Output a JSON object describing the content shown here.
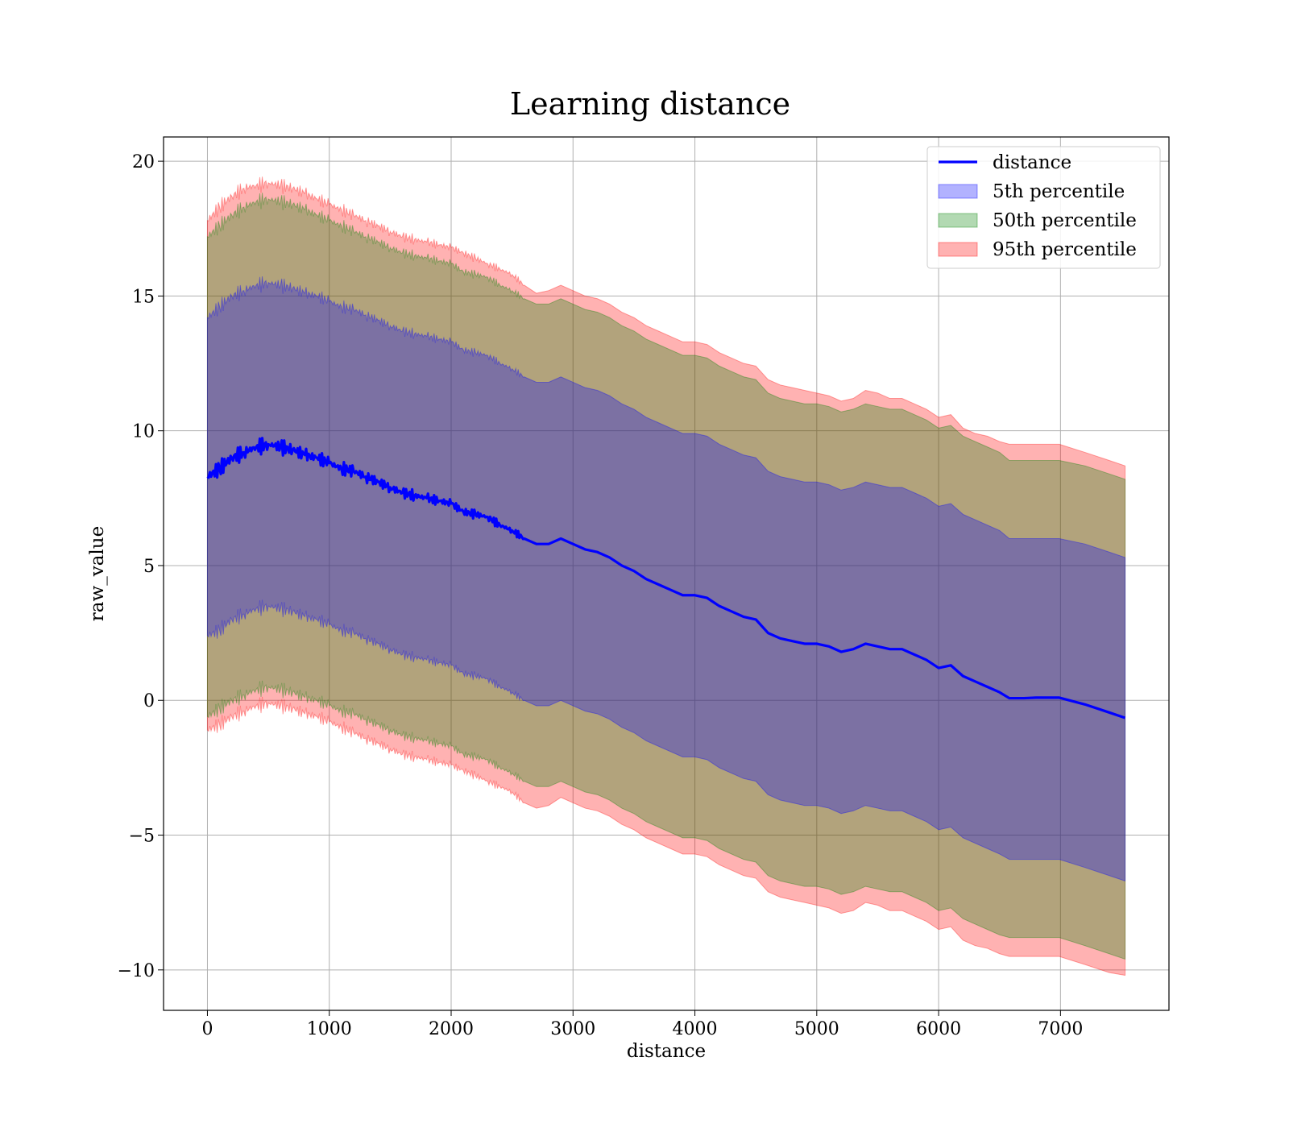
{
  "chart_data": {
    "type": "line",
    "title": "Learning distance",
    "xlabel": "distance",
    "ylabel": "raw_value",
    "xlim": [
      -360,
      7890
    ],
    "ylim": [
      -11.5,
      20.9
    ],
    "xticks": [
      0,
      1000,
      2000,
      3000,
      4000,
      5000,
      6000,
      7000
    ],
    "xtick_labels": [
      "0",
      "1000",
      "2000",
      "3000",
      "4000",
      "5000",
      "6000",
      "7000"
    ],
    "yticks": [
      -10,
      -5,
      0,
      5,
      10,
      15,
      20
    ],
    "ytick_labels": [
      "−10",
      "−5",
      "0",
      "5",
      "10",
      "15",
      "20"
    ],
    "grid": true,
    "legend": {
      "placement": "top-right",
      "entries": [
        {
          "label": "distance",
          "kind": "line",
          "color": "#0000ff"
        },
        {
          "label": "5th percentile",
          "kind": "band",
          "color": "#0000ff"
        },
        {
          "label": "50th percentile",
          "kind": "band",
          "color": "#008000"
        },
        {
          "label": "95th percentile",
          "kind": "band",
          "color": "#ff0000"
        }
      ]
    },
    "x": [
      0,
      100,
      200,
      300,
      400,
      500,
      600,
      700,
      800,
      900,
      1000,
      1100,
      1200,
      1300,
      1400,
      1500,
      1600,
      1700,
      1800,
      1900,
      2000,
      2100,
      2200,
      2300,
      2400,
      2500,
      2600,
      2700,
      2800,
      2900,
      3000,
      3100,
      3200,
      3300,
      3400,
      3500,
      3600,
      3700,
      3800,
      3900,
      4000,
      4100,
      4200,
      4300,
      4400,
      4500,
      4600,
      4700,
      4800,
      4900,
      5000,
      5100,
      5200,
      5300,
      5400,
      5500,
      5600,
      5700,
      5800,
      5900,
      6000,
      6100,
      6200,
      6300,
      6400,
      6500,
      6580,
      6700,
      6800,
      6990,
      7200,
      7400,
      7530
    ],
    "series": [
      {
        "name": "distance",
        "kind": "line",
        "color": "#0000ff",
        "values": [
          8.3,
          8.6,
          9.0,
          9.2,
          9.4,
          9.5,
          9.4,
          9.3,
          9.1,
          9.0,
          8.8,
          8.6,
          8.5,
          8.3,
          8.1,
          7.9,
          7.7,
          7.6,
          7.5,
          7.4,
          7.3,
          7.0,
          6.9,
          6.8,
          6.5,
          6.3,
          6.0,
          5.8,
          5.8,
          6.0,
          5.8,
          5.6,
          5.5,
          5.3,
          5.0,
          4.8,
          4.5,
          4.3,
          4.1,
          3.9,
          3.9,
          3.8,
          3.5,
          3.3,
          3.1,
          3.0,
          2.5,
          2.3,
          2.2,
          2.1,
          2.1,
          2.0,
          1.8,
          1.9,
          2.1,
          2.0,
          1.9,
          1.9,
          1.7,
          1.5,
          1.2,
          1.3,
          0.9,
          0.7,
          0.5,
          0.3,
          0.08,
          0.08,
          0.1,
          0.1,
          -0.15,
          -0.45,
          -0.65
        ]
      }
    ],
    "bands": [
      {
        "name": "95th percentile",
        "color": "#ff0000",
        "upper": [
          17.8,
          18.3,
          18.7,
          19.0,
          19.1,
          19.2,
          19.1,
          19.0,
          18.8,
          18.6,
          18.4,
          18.2,
          18.0,
          17.8,
          17.6,
          17.4,
          17.2,
          17.1,
          17.0,
          16.9,
          16.8,
          16.6,
          16.4,
          16.2,
          16.0,
          15.8,
          15.4,
          15.1,
          15.2,
          15.4,
          15.2,
          15.0,
          14.9,
          14.7,
          14.4,
          14.2,
          13.9,
          13.7,
          13.5,
          13.3,
          13.3,
          13.2,
          12.9,
          12.7,
          12.5,
          12.4,
          11.9,
          11.7,
          11.6,
          11.5,
          11.4,
          11.3,
          11.1,
          11.2,
          11.5,
          11.4,
          11.2,
          11.2,
          11.0,
          10.8,
          10.5,
          10.6,
          10.1,
          9.9,
          9.8,
          9.6,
          9.5,
          9.5,
          9.5,
          9.5,
          9.2,
          8.9,
          8.7
        ],
        "lower": [
          -1.1,
          -0.9,
          -0.6,
          -0.4,
          -0.2,
          -0.1,
          -0.2,
          -0.3,
          -0.5,
          -0.6,
          -0.8,
          -1.0,
          -1.2,
          -1.4,
          -1.6,
          -1.8,
          -2.0,
          -2.1,
          -2.2,
          -2.3,
          -2.4,
          -2.6,
          -2.8,
          -3.0,
          -3.2,
          -3.4,
          -3.8,
          -4.0,
          -3.9,
          -3.6,
          -3.8,
          -4.0,
          -4.1,
          -4.3,
          -4.6,
          -4.8,
          -5.1,
          -5.3,
          -5.5,
          -5.7,
          -5.7,
          -5.8,
          -6.1,
          -6.3,
          -6.5,
          -6.6,
          -7.1,
          -7.3,
          -7.4,
          -7.5,
          -7.6,
          -7.7,
          -7.9,
          -7.8,
          -7.5,
          -7.6,
          -7.8,
          -7.8,
          -8.0,
          -8.2,
          -8.5,
          -8.4,
          -8.9,
          -9.1,
          -9.2,
          -9.4,
          -9.5,
          -9.5,
          -9.5,
          -9.5,
          -9.8,
          -10.1,
          -10.2
        ]
      },
      {
        "name": "50th percentile",
        "color": "#008000",
        "upper": [
          17.2,
          17.6,
          18.0,
          18.3,
          18.5,
          18.6,
          18.5,
          18.4,
          18.2,
          18.0,
          17.8,
          17.6,
          17.4,
          17.2,
          17.0,
          16.8,
          16.6,
          16.5,
          16.4,
          16.3,
          16.2,
          15.9,
          15.8,
          15.7,
          15.4,
          15.2,
          14.9,
          14.7,
          14.7,
          14.9,
          14.7,
          14.5,
          14.4,
          14.2,
          13.9,
          13.7,
          13.4,
          13.2,
          13.0,
          12.8,
          12.8,
          12.7,
          12.4,
          12.2,
          12.0,
          11.9,
          11.4,
          11.2,
          11.1,
          11.0,
          11.0,
          10.9,
          10.7,
          10.8,
          11.0,
          10.9,
          10.8,
          10.8,
          10.6,
          10.4,
          10.1,
          10.2,
          9.8,
          9.6,
          9.4,
          9.2,
          8.9,
          8.9,
          8.9,
          8.9,
          8.7,
          8.4,
          8.2
        ],
        "lower": [
          -0.6,
          -0.3,
          0.0,
          0.2,
          0.4,
          0.5,
          0.4,
          0.3,
          0.1,
          0.0,
          -0.2,
          -0.4,
          -0.5,
          -0.7,
          -0.9,
          -1.1,
          -1.3,
          -1.4,
          -1.5,
          -1.6,
          -1.7,
          -2.0,
          -2.1,
          -2.2,
          -2.5,
          -2.7,
          -3.0,
          -3.2,
          -3.2,
          -3.0,
          -3.2,
          -3.4,
          -3.5,
          -3.7,
          -4.0,
          -4.2,
          -4.5,
          -4.7,
          -4.9,
          -5.1,
          -5.1,
          -5.2,
          -5.5,
          -5.7,
          -5.9,
          -6.0,
          -6.5,
          -6.7,
          -6.8,
          -6.9,
          -6.9,
          -7.0,
          -7.2,
          -7.1,
          -6.9,
          -7.0,
          -7.1,
          -7.1,
          -7.3,
          -7.5,
          -7.8,
          -7.7,
          -8.1,
          -8.3,
          -8.5,
          -8.7,
          -8.8,
          -8.8,
          -8.8,
          -8.8,
          -9.1,
          -9.4,
          -9.6
        ]
      },
      {
        "name": "5th percentile",
        "color": "#0000ff",
        "upper": [
          14.2,
          14.6,
          15.0,
          15.2,
          15.4,
          15.5,
          15.4,
          15.3,
          15.1,
          15.0,
          14.8,
          14.6,
          14.5,
          14.3,
          14.1,
          13.9,
          13.7,
          13.6,
          13.5,
          13.4,
          13.3,
          13.0,
          12.9,
          12.8,
          12.5,
          12.3,
          12.0,
          11.8,
          11.8,
          12.0,
          11.8,
          11.6,
          11.5,
          11.3,
          11.0,
          10.8,
          10.5,
          10.3,
          10.1,
          9.9,
          9.9,
          9.8,
          9.5,
          9.3,
          9.1,
          9.0,
          8.5,
          8.3,
          8.2,
          8.1,
          8.1,
          8.0,
          7.8,
          7.9,
          8.1,
          8.0,
          7.9,
          7.9,
          7.7,
          7.5,
          7.2,
          7.3,
          6.9,
          6.7,
          6.5,
          6.3,
          6.0,
          6.0,
          6.0,
          6.0,
          5.8,
          5.5,
          5.3
        ],
        "lower": [
          2.4,
          2.6,
          3.0,
          3.2,
          3.4,
          3.5,
          3.4,
          3.3,
          3.1,
          3.0,
          2.8,
          2.6,
          2.5,
          2.3,
          2.1,
          1.9,
          1.7,
          1.6,
          1.5,
          1.4,
          1.3,
          1.0,
          0.9,
          0.8,
          0.5,
          0.3,
          0.0,
          -0.2,
          -0.2,
          0.0,
          -0.2,
          -0.4,
          -0.5,
          -0.7,
          -1.0,
          -1.2,
          -1.5,
          -1.7,
          -1.9,
          -2.1,
          -2.1,
          -2.2,
          -2.5,
          -2.7,
          -2.9,
          -3.0,
          -3.5,
          -3.7,
          -3.8,
          -3.9,
          -3.9,
          -4.0,
          -4.2,
          -4.1,
          -3.9,
          -4.0,
          -4.1,
          -4.1,
          -4.3,
          -4.5,
          -4.8,
          -4.7,
          -5.1,
          -5.3,
          -5.5,
          -5.7,
          -5.9,
          -5.9,
          -5.9,
          -5.9,
          -6.2,
          -6.5,
          -6.7
        ]
      }
    ]
  }
}
